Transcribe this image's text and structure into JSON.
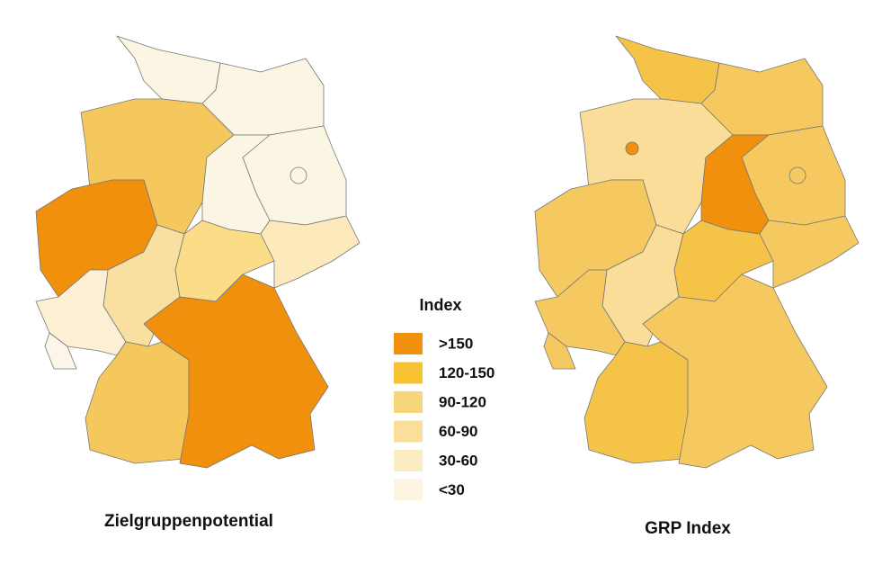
{
  "maps": [
    {
      "title": "Zielgruppenpotential"
    },
    {
      "title": "GRP Index"
    }
  ],
  "legend": {
    "title": "Index",
    "items": [
      {
        "label": ">150",
        "color": "#f0900c"
      },
      {
        "label": "120-150",
        "color": "#f7c232"
      },
      {
        "label": "90-120",
        "color": "#f8d57a"
      },
      {
        "label": "60-90",
        "color": "#fadf98"
      },
      {
        "label": "30-60",
        "color": "#fcecc4"
      },
      {
        "label": "<30",
        "color": "#fdf5e2"
      }
    ]
  }
}
